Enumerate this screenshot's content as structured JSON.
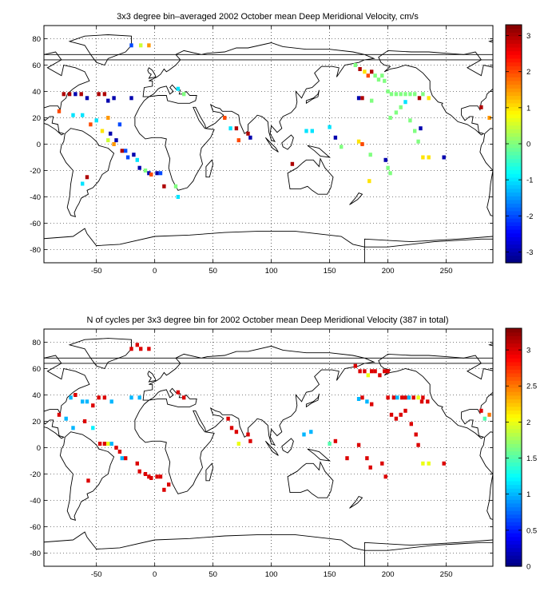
{
  "panels": [
    {
      "title": "3x3 degree bin–averaged 2002 October mean Deep Meridional Velocity, cm/s",
      "x_ticks": [
        "-50",
        "0",
        "50",
        "100",
        "150",
        "200",
        "250"
      ],
      "y_ticks": [
        "-80",
        "-60",
        "-40",
        "-20",
        "0",
        "20",
        "40",
        "60",
        "80"
      ],
      "colorbar": {
        "min": -3.3,
        "max": 3.3,
        "ticks": [
          "-3",
          "-2",
          "-1",
          "0",
          "1",
          "2",
          "3"
        ],
        "tick_values": [
          -3,
          -2,
          -1,
          0,
          1,
          2,
          3
        ]
      }
    },
    {
      "title": "N of cycles per 3x3 degree bin for 2002 October mean Deep Meridional Velocity (387 in total)",
      "x_ticks": [
        "-50",
        "0",
        "50",
        "100",
        "150",
        "200",
        "250"
      ],
      "y_ticks": [
        "-80",
        "-60",
        "-40",
        "-20",
        "0",
        "20",
        "40",
        "60",
        "80"
      ],
      "colorbar": {
        "min": 0,
        "max": 3.3,
        "ticks": [
          "0",
          "0.5",
          "1",
          "1.5",
          "2",
          "2.5",
          "3"
        ],
        "tick_values": [
          0,
          0.5,
          1,
          1.5,
          2,
          2.5,
          3
        ]
      }
    }
  ],
  "chart_data": [
    {
      "type": "heatmap",
      "title": "3x3 degree bin–averaged 2002 October mean Deep Meridional Velocity, cm/s",
      "xlim": [
        -95,
        290
      ],
      "ylim": [
        -90,
        90
      ],
      "grid": true,
      "colormap": "jet",
      "colorbar_range": [
        -3.3,
        3.3
      ],
      "bins": [
        [
          -20,
          75,
          -2
        ],
        [
          -12,
          75,
          0.5
        ],
        [
          -5,
          75,
          1.5
        ],
        [
          -78,
          38,
          3
        ],
        [
          -73,
          38,
          3
        ],
        [
          -68,
          38,
          -3
        ],
        [
          -63,
          38,
          3
        ],
        [
          -58,
          35,
          -3
        ],
        [
          -48,
          38,
          3
        ],
        [
          -43,
          38,
          3
        ],
        [
          -40,
          33,
          -3
        ],
        [
          -35,
          35,
          -3
        ],
        [
          -20,
          35,
          -3
        ],
        [
          -82,
          25,
          2
        ],
        [
          -70,
          22,
          -1
        ],
        [
          -62,
          22,
          -1
        ],
        [
          -55,
          15,
          2
        ],
        [
          -50,
          18,
          -1
        ],
        [
          -45,
          10,
          1
        ],
        [
          -40,
          20,
          1.5
        ],
        [
          -38,
          8,
          -3
        ],
        [
          -33,
          3,
          -3
        ],
        [
          -30,
          15,
          -2
        ],
        [
          -40,
          3,
          0.5
        ],
        [
          -35,
          0,
          1.5
        ],
        [
          -28,
          -5,
          3
        ],
        [
          -25,
          -5,
          -2
        ],
        [
          -23,
          -10,
          -2
        ],
        [
          -18,
          -8,
          -3
        ],
        [
          -15,
          -12,
          -1
        ],
        [
          -13,
          -18,
          -3
        ],
        [
          -8,
          -20,
          0
        ],
        [
          -5,
          -22,
          -3
        ],
        [
          -3,
          -23,
          2
        ],
        [
          2,
          -22,
          -3
        ],
        [
          5,
          -22,
          -2
        ],
        [
          8,
          -32,
          3
        ],
        [
          -58,
          -25,
          3
        ],
        [
          -62,
          -30,
          -1
        ],
        [
          18,
          -32,
          0
        ],
        [
          20,
          -40,
          -1
        ],
        [
          20,
          42,
          -1
        ],
        [
          25,
          38,
          0
        ],
        [
          60,
          20,
          2
        ],
        [
          65,
          12,
          -1
        ],
        [
          70,
          12,
          3
        ],
        [
          72,
          3,
          2
        ],
        [
          80,
          8,
          3
        ],
        [
          82,
          5,
          -3
        ],
        [
          118,
          -15,
          3
        ],
        [
          130,
          10,
          -1
        ],
        [
          135,
          10,
          -1
        ],
        [
          150,
          13,
          -1
        ],
        [
          155,
          5,
          -3
        ],
        [
          160,
          -2,
          0
        ],
        [
          175,
          2,
          1
        ],
        [
          178,
          0,
          2
        ],
        [
          185,
          -8,
          0
        ],
        [
          198,
          -12,
          -3
        ],
        [
          172,
          60,
          0
        ],
        [
          176,
          57,
          3
        ],
        [
          180,
          55,
          1
        ],
        [
          183,
          52,
          2
        ],
        [
          186,
          55,
          3
        ],
        [
          189,
          52,
          0
        ],
        [
          192,
          49,
          0
        ],
        [
          195,
          52,
          0
        ],
        [
          175,
          35,
          -3
        ],
        [
          178,
          35,
          3
        ],
        [
          186,
          33,
          0
        ],
        [
          197,
          48,
          0
        ],
        [
          200,
          40,
          0
        ],
        [
          203,
          38,
          0
        ],
        [
          207,
          38,
          0
        ],
        [
          211,
          38,
          0
        ],
        [
          215,
          38,
          0
        ],
        [
          219,
          38,
          0
        ],
        [
          223,
          38,
          0
        ],
        [
          227,
          35,
          3
        ],
        [
          230,
          38,
          0
        ],
        [
          235,
          35,
          1
        ],
        [
          202,
          20,
          0
        ],
        [
          207,
          24,
          0
        ],
        [
          211,
          28,
          0
        ],
        [
          215,
          32,
          -1
        ],
        [
          219,
          18,
          0
        ],
        [
          223,
          10,
          0
        ],
        [
          226,
          2,
          0
        ],
        [
          228,
          12,
          -3
        ],
        [
          230,
          -10,
          1
        ],
        [
          235,
          -10,
          1
        ],
        [
          248,
          -10,
          -3
        ],
        [
          200,
          -18,
          0
        ],
        [
          202,
          -22,
          0
        ],
        [
          184,
          -28,
          1
        ],
        [
          280,
          28,
          3
        ],
        [
          287,
          20,
          1.5
        ]
      ]
    },
    {
      "type": "heatmap",
      "title": "N of cycles per 3x3 degree bin for 2002 October mean Deep Meridional Velocity (387 in total)",
      "xlim": [
        -95,
        290
      ],
      "ylim": [
        -90,
        90
      ],
      "grid": true,
      "colormap": "jet",
      "colorbar_range": [
        0,
        3.3
      ],
      "bins": [
        [
          -20,
          75,
          3
        ],
        [
          -15,
          78,
          3
        ],
        [
          -12,
          75,
          3
        ],
        [
          -5,
          75,
          3
        ],
        [
          -72,
          38,
          1
        ],
        [
          -68,
          40,
          3
        ],
        [
          -62,
          35,
          1
        ],
        [
          -58,
          35,
          1
        ],
        [
          -53,
          32,
          3
        ],
        [
          -48,
          38,
          3
        ],
        [
          -43,
          38,
          3
        ],
        [
          -37,
          35,
          1
        ],
        [
          -20,
          38,
          1
        ],
        [
          -13,
          38,
          1
        ],
        [
          -82,
          25,
          3
        ],
        [
          -76,
          22,
          1
        ],
        [
          -70,
          15,
          1
        ],
        [
          -60,
          20,
          3
        ],
        [
          -53,
          15,
          1.2
        ],
        [
          -47,
          3,
          3
        ],
        [
          -43,
          3,
          3
        ],
        [
          -40,
          3,
          2
        ],
        [
          -37,
          3,
          1
        ],
        [
          -33,
          0,
          3
        ],
        [
          -30,
          -3,
          3
        ],
        [
          -28,
          -8,
          1
        ],
        [
          -25,
          -8,
          3
        ],
        [
          -15,
          -12,
          3
        ],
        [
          -13,
          -18,
          3
        ],
        [
          -8,
          -20,
          3
        ],
        [
          -5,
          -22,
          3
        ],
        [
          -3,
          -23,
          3
        ],
        [
          2,
          -22,
          3
        ],
        [
          5,
          -22,
          3
        ],
        [
          8,
          -32,
          3
        ],
        [
          12,
          -28,
          3
        ],
        [
          -57,
          -25,
          3
        ],
        [
          20,
          42,
          3
        ],
        [
          25,
          38,
          3
        ],
        [
          63,
          22,
          3
        ],
        [
          66,
          15,
          3
        ],
        [
          70,
          12,
          3
        ],
        [
          72,
          3,
          2
        ],
        [
          80,
          10,
          3
        ],
        [
          82,
          5,
          3
        ],
        [
          128,
          10,
          1
        ],
        [
          134,
          12,
          1
        ],
        [
          150,
          3,
          1.5
        ],
        [
          155,
          5,
          3
        ],
        [
          165,
          -8,
          3
        ],
        [
          175,
          2,
          3
        ],
        [
          182,
          -8,
          3
        ],
        [
          185,
          -15,
          3
        ],
        [
          195,
          -12,
          3
        ],
        [
          198,
          -22,
          3
        ],
        [
          172,
          62,
          3
        ],
        [
          176,
          58,
          3
        ],
        [
          180,
          58,
          3
        ],
        [
          183,
          55,
          2
        ],
        [
          186,
          58,
          3
        ],
        [
          189,
          58,
          3
        ],
        [
          193,
          55,
          3
        ],
        [
          197,
          58,
          3
        ],
        [
          200,
          58,
          3
        ],
        [
          175,
          37,
          1
        ],
        [
          178,
          38,
          3
        ],
        [
          182,
          35,
          1
        ],
        [
          186,
          33,
          3
        ],
        [
          200,
          38,
          3
        ],
        [
          205,
          38,
          3
        ],
        [
          208,
          38,
          1
        ],
        [
          212,
          38,
          3
        ],
        [
          215,
          38,
          3
        ],
        [
          218,
          38,
          1
        ],
        [
          222,
          38,
          3
        ],
        [
          226,
          38,
          2
        ],
        [
          230,
          38,
          3
        ],
        [
          234,
          35,
          3
        ],
        [
          203,
          25,
          3
        ],
        [
          207,
          22,
          3
        ],
        [
          211,
          25,
          3
        ],
        [
          215,
          28,
          3
        ],
        [
          220,
          18,
          3
        ],
        [
          224,
          10,
          3
        ],
        [
          226,
          2,
          3
        ],
        [
          229,
          35,
          3
        ],
        [
          230,
          -12,
          2
        ],
        [
          235,
          -12,
          2
        ],
        [
          248,
          -12,
          3
        ],
        [
          280,
          28,
          3
        ],
        [
          283,
          22,
          1.5
        ],
        [
          287,
          25,
          2.5
        ]
      ]
    }
  ]
}
